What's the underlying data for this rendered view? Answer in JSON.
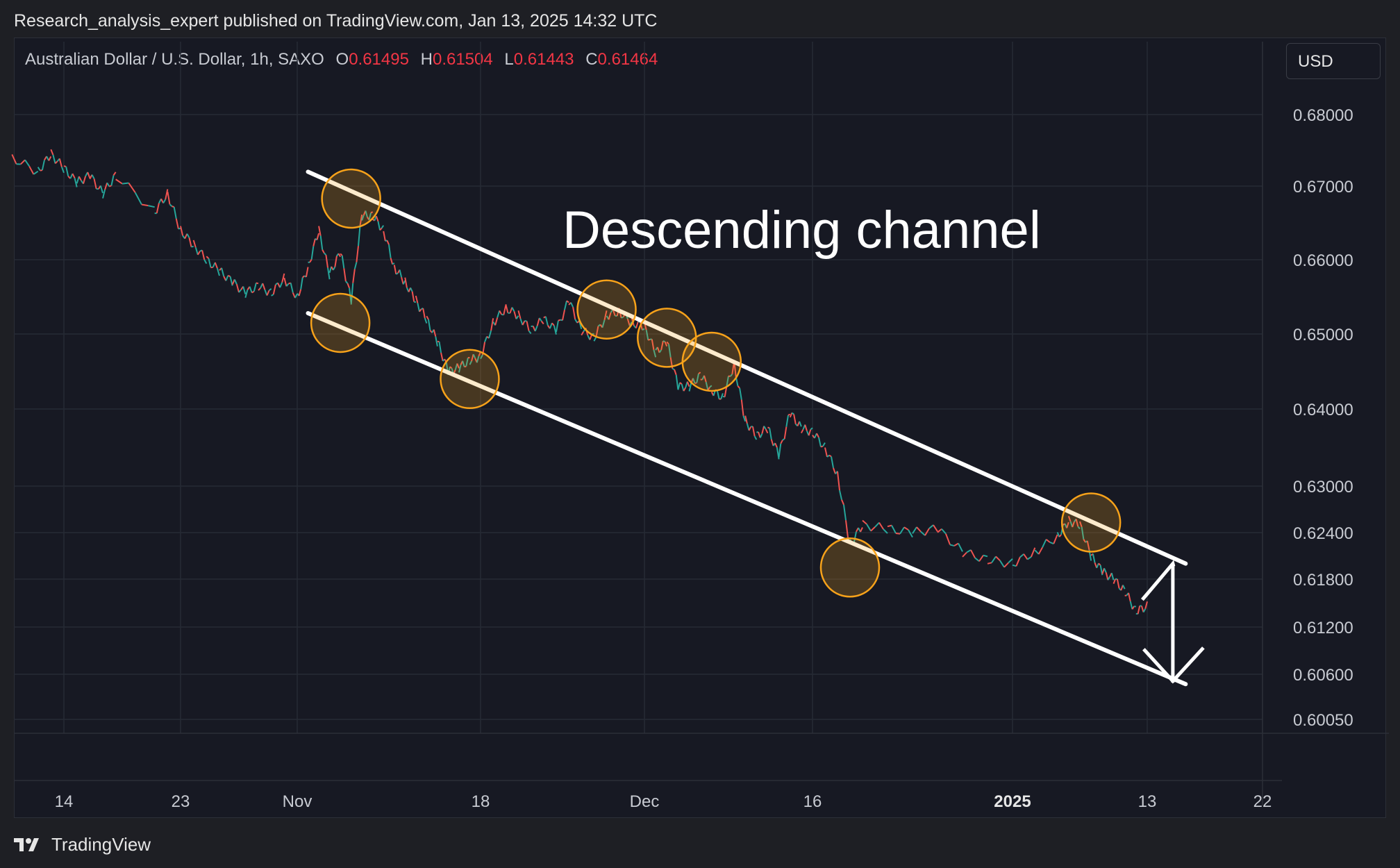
{
  "header": {
    "published_line": "Research_analysis_expert published on TradingView.com, Jan 13, 2025 14:32 UTC"
  },
  "legend": {
    "symbol": "Australian Dollar / U.S. Dollar, 1h, SAXO",
    "open_label": "O",
    "open_value": "0.61495",
    "high_label": "H",
    "high_value": "0.61504",
    "low_label": "L",
    "low_value": "0.61443",
    "close_label": "C",
    "close_value": "0.61464"
  },
  "currency_button": {
    "label": "USD"
  },
  "annotation": {
    "title": "Descending channel"
  },
  "footer": {
    "brand": "TradingView"
  },
  "colors": {
    "up": "#26a69a",
    "down": "#ef5350",
    "channel": "#ffffff",
    "circle_fill": "#f7a21a",
    "circle_stroke": "#f7a21a",
    "background": "#171923",
    "grid": "#262a35",
    "text": "#c8cbd2"
  },
  "chart_data": {
    "type": "line",
    "symbol": "AUD/USD",
    "interval": "1h",
    "y_axis": {
      "ticks": [
        "0.68000",
        "0.67000",
        "0.66000",
        "0.65000",
        "0.64000",
        "0.63000",
        "0.62400",
        "0.61800",
        "0.61200",
        "0.60600",
        "0.60050"
      ],
      "ylim": [
        0.5995,
        0.6845
      ],
      "scale": "log"
    },
    "x_axis": {
      "ticks": [
        "14",
        "23",
        "Nov",
        "18",
        "Dec",
        "16",
        "2025",
        "13",
        "22"
      ],
      "tick_dates": [
        "2024-10-14",
        "2024-10-23",
        "2024-11-01",
        "2024-11-18",
        "2024-12-01",
        "2024-12-16",
        "2025-01-01",
        "2025-01-13",
        "2025-01-22"
      ],
      "bold_ticks": [
        "2025"
      ]
    },
    "series": [
      {
        "values_x": [
          "2024-10-10",
          "2024-10-12",
          "2024-10-13",
          "2024-10-14",
          "2024-10-15",
          "2024-10-16",
          "2024-10-17",
          "2024-10-18",
          "2024-10-21",
          "2024-10-22",
          "2024-10-23",
          "2024-10-24",
          "2024-10-25",
          "2024-10-26",
          "2024-10-27",
          "2024-10-28",
          "2024-10-29",
          "2024-10-30",
          "2024-10-31",
          "2024-11-01",
          "2024-11-02",
          "2024-11-03",
          "2024-11-04",
          "2024-11-05",
          "2024-11-06",
          "2024-11-07",
          "2024-11-08",
          "2024-11-09",
          "2024-11-10",
          "2024-11-11",
          "2024-11-12",
          "2024-11-13",
          "2024-11-14",
          "2024-11-15",
          "2024-11-16",
          "2024-11-17",
          "2024-11-18",
          "2024-11-19",
          "2024-11-20",
          "2024-11-21",
          "2024-11-22",
          "2024-11-23",
          "2024-11-24",
          "2024-11-25",
          "2024-11-26",
          "2024-11-27",
          "2024-11-28",
          "2024-11-29",
          "2024-11-30",
          "2024-12-01",
          "2024-12-02",
          "2024-12-03",
          "2024-12-04",
          "2024-12-05",
          "2024-12-06",
          "2024-12-07",
          "2024-12-08",
          "2024-12-09",
          "2024-12-10",
          "2024-12-11",
          "2024-12-12",
          "2024-12-13",
          "2024-12-14",
          "2024-12-15",
          "2024-12-16",
          "2024-12-17",
          "2024-12-18",
          "2024-12-19",
          "2024-12-20",
          "2024-12-22",
          "2024-12-24",
          "2024-12-26",
          "2024-12-28",
          "2024-12-30",
          "2025-01-01",
          "2025-01-03",
          "2025-01-05",
          "2025-01-06",
          "2025-01-07",
          "2025-01-08",
          "2025-01-09",
          "2025-01-10",
          "2025-01-11",
          "2025-01-12",
          "2025-01-13"
        ],
        "values_y": [
          0.674,
          0.672,
          0.6745,
          0.6725,
          0.6705,
          0.6715,
          0.669,
          0.6715,
          0.6665,
          0.669,
          0.664,
          0.662,
          0.66,
          0.6585,
          0.657,
          0.6555,
          0.6565,
          0.6555,
          0.6575,
          0.655,
          0.659,
          0.664,
          0.658,
          0.661,
          0.6545,
          0.666,
          0.666,
          0.664,
          0.659,
          0.657,
          0.6545,
          0.652,
          0.649,
          0.645,
          0.6455,
          0.6465,
          0.647,
          0.6515,
          0.6535,
          0.6525,
          0.6505,
          0.652,
          0.6505,
          0.6545,
          0.6505,
          0.6495,
          0.6525,
          0.653,
          0.6515,
          0.651,
          0.6475,
          0.649,
          0.643,
          0.643,
          0.6445,
          0.6425,
          0.6415,
          0.646,
          0.6385,
          0.6365,
          0.6375,
          0.634,
          0.6395,
          0.6375,
          0.637,
          0.635,
          0.6315,
          0.6225,
          0.625,
          0.6245,
          0.624,
          0.6245,
          0.6215,
          0.6205,
          0.62,
          0.6215,
          0.6235,
          0.6255,
          0.625,
          0.621,
          0.619,
          0.618,
          0.6165,
          0.614,
          0.6146
        ]
      }
    ],
    "channel": {
      "upper": [
        [
          "2024-11-02",
          0.672
        ],
        [
          "2025-01-16",
          0.62
        ]
      ],
      "lower": [
        [
          "2024-11-02",
          0.6528
        ],
        [
          "2025-01-16",
          0.6048
        ]
      ]
    },
    "touch_points": [
      [
        "2024-11-06",
        0.6683
      ],
      [
        "2024-11-05",
        0.6515
      ],
      [
        "2024-11-17",
        0.644
      ],
      [
        "2024-11-28",
        0.6533
      ],
      [
        "2024-12-03",
        0.6495
      ],
      [
        "2024-12-07",
        0.6463
      ],
      [
        "2024-12-19",
        0.6195
      ],
      [
        "2025-01-08",
        0.6253
      ]
    ],
    "projection_arrow": {
      "from": [
        "2025-01-15",
        0.62
      ],
      "to": [
        "2025-01-15",
        0.605
      ]
    }
  }
}
